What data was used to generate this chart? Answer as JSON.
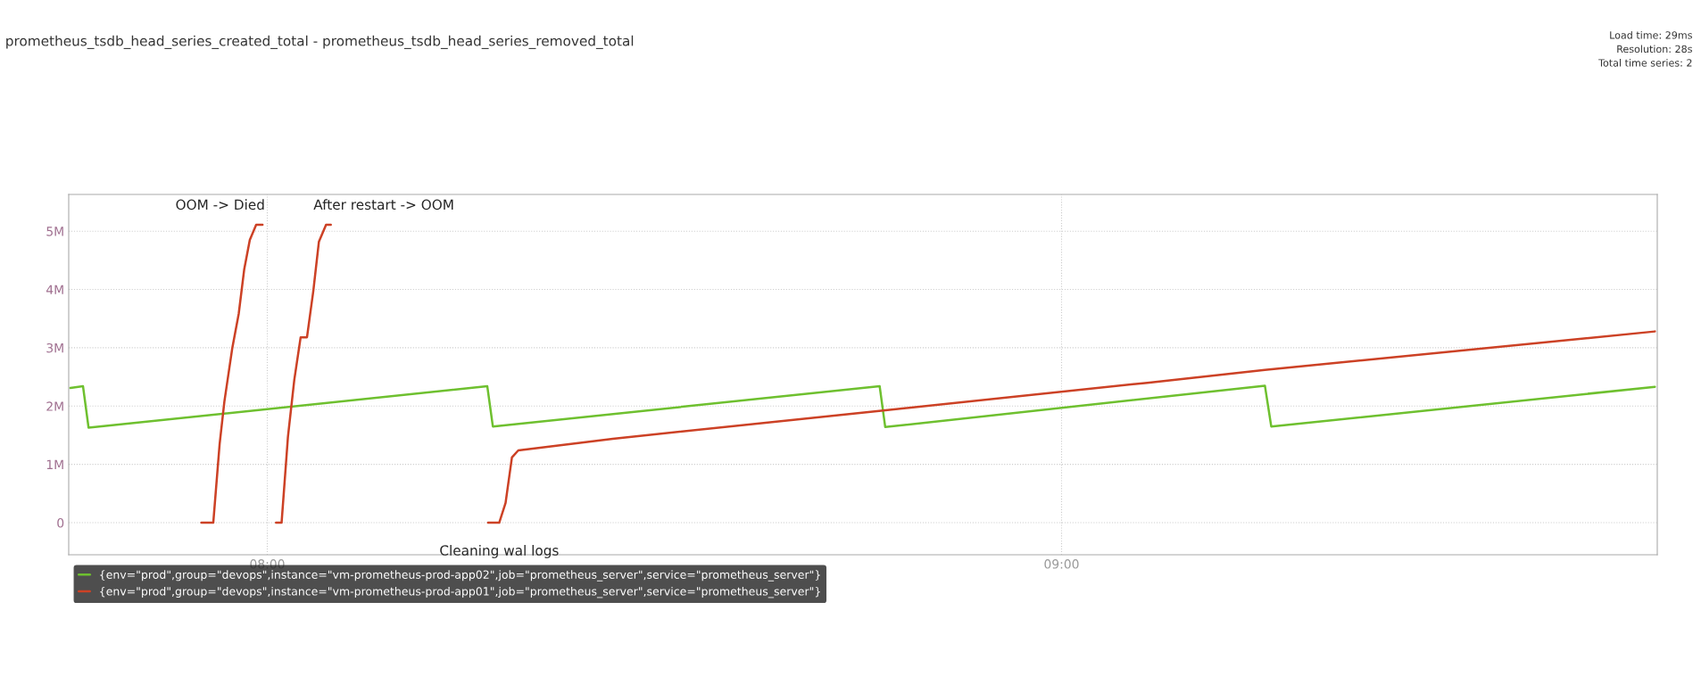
{
  "chart_data": {
    "type": "line",
    "title": "prometheus_tsdb_head_series_created_total - prometheus_tsdb_head_series_removed_total",
    "xlim": [
      7.75,
      9.75
    ],
    "xticks": [
      {
        "value": 8,
        "label": "08:00"
      },
      {
        "value": 9,
        "label": "09:00"
      }
    ],
    "ylim": [
      -0.55,
      5.63
    ],
    "yticks": [
      {
        "value": 0,
        "label": "0"
      },
      {
        "value": 1,
        "label": "1M"
      },
      {
        "value": 2,
        "label": "2M"
      },
      {
        "value": 3,
        "label": "3M"
      },
      {
        "value": 4,
        "label": "4M"
      },
      {
        "value": 5,
        "label": "5M"
      }
    ],
    "grid": true,
    "legend": "bottom",
    "marker": "none",
    "line_style": "solid",
    "series": [
      {
        "name": "{env=\"prod\",group=\"devops\",instance=\"vm-prometheus-prod-app02\",job=\"prometheus_server\",service=\"prometheus_server\"}",
        "color": "#6ec02f",
        "x": [
          7.752,
          7.768,
          7.775,
          8.277,
          8.284,
          8.771,
          8.778,
          9.256,
          9.264,
          9.747
        ],
        "values": [
          2.31,
          2.34,
          1.63,
          2.34,
          1.65,
          2.34,
          1.64,
          2.35,
          1.65,
          2.33
        ]
      },
      {
        "name": "{env=\"prod\",group=\"devops\",instance=\"vm-prometheus-prod-app01\",job=\"prometheus_server\",service=\"prometheus_server\"}",
        "color": "#cc4125",
        "x": [
          7.917,
          7.932,
          7.94,
          7.946,
          7.956,
          7.964,
          7.971,
          7.978,
          7.986,
          7.994,
          8.002,
          8.011,
          8.018,
          8.026,
          8.034,
          8.042,
          8.05,
          8.058,
          8.065,
          8.074,
          8.08,
          8.2,
          8.278,
          8.292,
          8.3,
          8.308,
          8.316,
          8.435,
          8.773,
          9.108,
          9.256,
          9.747
        ],
        "values": [
          0,
          0,
          1.35,
          2.08,
          3.0,
          3.58,
          4.35,
          4.85,
          5.11,
          5.11,
          null,
          0,
          0,
          1.47,
          2.45,
          3.18,
          3.18,
          3.98,
          4.82,
          5.11,
          5.11,
          null,
          0,
          0,
          0.34,
          1.12,
          1.24,
          1.44,
          1.92,
          2.4,
          2.62,
          3.28
        ]
      }
    ],
    "annotations": [
      {
        "text": "OOM -> Died",
        "x": 7.994,
        "y": 5.11
      },
      {
        "text": "After restart -> OOM",
        "x": 8.08,
        "y": 5.11
      },
      {
        "text": "Cleaning wal logs",
        "x": 8.292,
        "y": 0
      },
      "Load time: 29ms",
      "Resolution: 28s",
      "Total time series: 2"
    ]
  }
}
